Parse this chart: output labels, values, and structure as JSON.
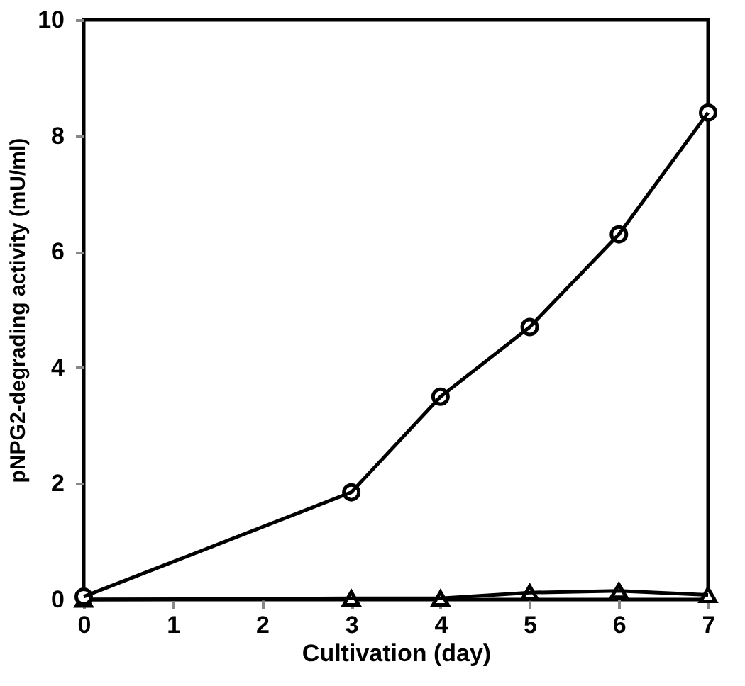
{
  "chart_data": {
    "type": "line",
    "xlabel": "Cultivation (day)",
    "ylabel": "pNPG2-degrading activity (mU/ml)",
    "x": [
      0,
      3,
      4,
      5,
      6,
      7
    ],
    "series": [
      {
        "color": "#000000",
        "marker": "circle",
        "values": [
          0.05,
          1.85,
          3.5,
          4.7,
          6.3,
          8.4
        ]
      },
      {
        "color": "#000000",
        "marker": "triangle",
        "values": [
          0,
          0.02,
          0.02,
          0.12,
          0.15,
          0.08
        ]
      }
    ],
    "xlim": [
      0,
      7
    ],
    "xticks": [
      0,
      1,
      2,
      3,
      4,
      5,
      6,
      7
    ],
    "ylim": [
      0,
      10
    ],
    "yticks": [
      0,
      2,
      4,
      6,
      8,
      10
    ],
    "grid": false,
    "line_style": "solid"
  }
}
